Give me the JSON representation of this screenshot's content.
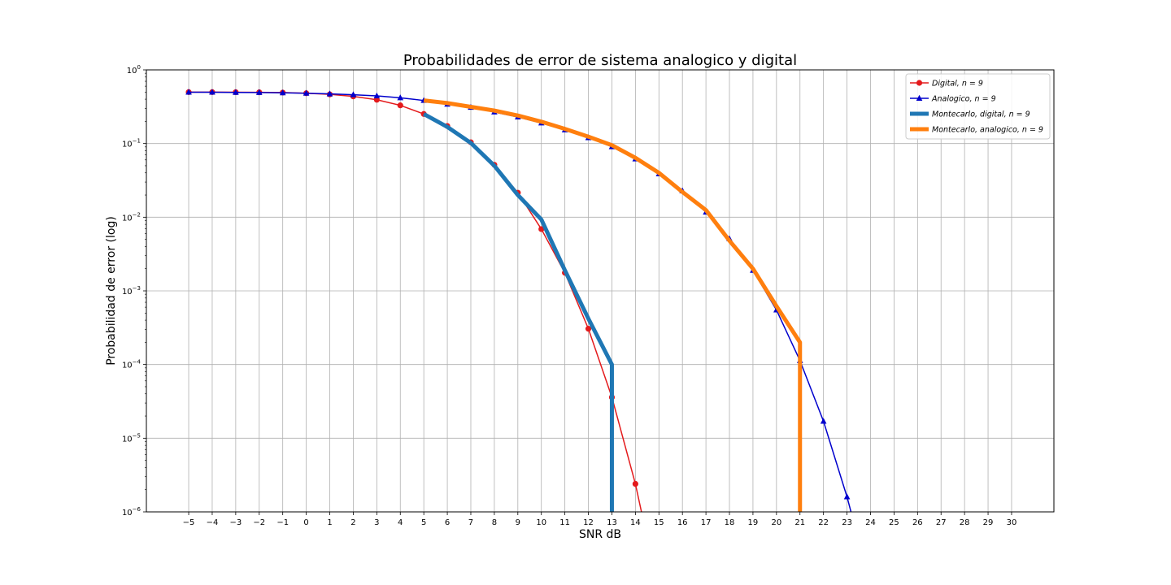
{
  "chart_data": {
    "type": "line",
    "title": "Probabilidades de error de sistema analogico y digital",
    "xlabel": "SNR dB",
    "ylabel": "Probabilidad de error (log)",
    "xlim": [
      -6.8,
      31.8
    ],
    "ylim": [
      1e-06,
      1
    ],
    "yscale": "log",
    "grid": true,
    "legend_position": "top-right",
    "x_ticks": [
      -5,
      -4,
      -3,
      -2,
      -1,
      0,
      1,
      2,
      3,
      4,
      5,
      6,
      7,
      8,
      9,
      10,
      11,
      12,
      13,
      14,
      15,
      16,
      17,
      18,
      19,
      20,
      21,
      22,
      23,
      24,
      25,
      26,
      27,
      28,
      29,
      30
    ],
    "x_tick_labels": [
      "−5",
      "−4",
      "−3",
      "−2",
      "−1",
      "0",
      "1",
      "2",
      "3",
      "4",
      "5",
      "6",
      "7",
      "8",
      "9",
      "10",
      "11",
      "12",
      "13",
      "14",
      "15",
      "16",
      "17",
      "18",
      "19",
      "20",
      "21",
      "22",
      "23",
      "24",
      "25",
      "26",
      "27",
      "28",
      "29",
      "30"
    ],
    "y_ticks": [
      {
        "base": "10",
        "exp": "−6",
        "value": 1e-06
      },
      {
        "base": "10",
        "exp": "−5",
        "value": 1e-05
      },
      {
        "base": "10",
        "exp": "−4",
        "value": 0.0001
      },
      {
        "base": "10",
        "exp": "−3",
        "value": 0.001
      },
      {
        "base": "10",
        "exp": "−2",
        "value": 0.01
      },
      {
        "base": "10",
        "exp": "−1",
        "value": 0.1
      },
      {
        "base": "10",
        "exp": "0",
        "value": 1
      }
    ],
    "series": [
      {
        "name": "Digital, n = 9",
        "legend_prefix": "Digital,",
        "legend_suffix": "n = 9",
        "color": "#e41a1c",
        "line_width": 1.5,
        "marker": "circle",
        "x": [
          -5,
          -4,
          -3,
          -2,
          -1,
          0,
          1,
          2,
          3,
          4,
          5,
          6,
          7,
          8,
          9,
          10,
          11,
          12,
          13,
          14,
          15
        ],
        "y": [
          0.499,
          0.499,
          0.498,
          0.496,
          0.492,
          0.482,
          0.465,
          0.437,
          0.393,
          0.33,
          0.252,
          0.173,
          0.104,
          0.0515,
          0.0215,
          0.0069,
          0.00176,
          0.000306,
          3.6e-05,
          2.4e-06,
          8e-08
        ]
      },
      {
        "name": "Analogico, n = 9",
        "legend_prefix": "Analogico,",
        "legend_suffix": "n = 9",
        "color": "#0000cc",
        "line_width": 1.5,
        "marker": "triangle",
        "x": [
          -5,
          -4,
          -3,
          -2,
          -1,
          0,
          1,
          2,
          3,
          4,
          5,
          6,
          7,
          8,
          9,
          10,
          11,
          12,
          13,
          14,
          15,
          16,
          17,
          18,
          19,
          20,
          21,
          22,
          23,
          24
        ],
        "y": [
          0.498,
          0.497,
          0.495,
          0.493,
          0.488,
          0.482,
          0.472,
          0.46,
          0.443,
          0.418,
          0.384,
          0.342,
          0.31,
          0.268,
          0.229,
          0.19,
          0.153,
          0.12,
          0.0905,
          0.0617,
          0.0387,
          0.0228,
          0.0117,
          0.0051,
          0.0019,
          0.00055,
          0.000113,
          1.7e-05,
          1.6e-06,
          1e-07
        ]
      },
      {
        "name": "Montecarlo, digital, n = 9",
        "legend_prefix": "Montecarlo, digital,",
        "legend_suffix": "n = 9",
        "color": "#1f77b4",
        "line_width": 5,
        "marker": "none",
        "x": [
          5,
          6,
          7,
          8,
          9,
          10,
          11,
          12,
          13,
          13
        ],
        "y": [
          0.252,
          0.168,
          0.102,
          0.05,
          0.02,
          0.0093,
          0.0019,
          0.00042,
          0.0001,
          1e-07
        ]
      },
      {
        "name": "Montecarlo, analogico, n = 9",
        "legend_prefix": "Montecarlo, analogico,",
        "legend_suffix": "n = 9",
        "color": "#ff7f0e",
        "line_width": 5,
        "marker": "none",
        "x": [
          5,
          6,
          7,
          8,
          9,
          10,
          11,
          12,
          13,
          14,
          15,
          16,
          17,
          18,
          19,
          20,
          21,
          21
        ],
        "y": [
          0.385,
          0.354,
          0.315,
          0.28,
          0.24,
          0.198,
          0.158,
          0.124,
          0.095,
          0.064,
          0.04,
          0.022,
          0.0125,
          0.0048,
          0.002,
          0.00062,
          0.0002,
          1e-07
        ]
      }
    ]
  }
}
